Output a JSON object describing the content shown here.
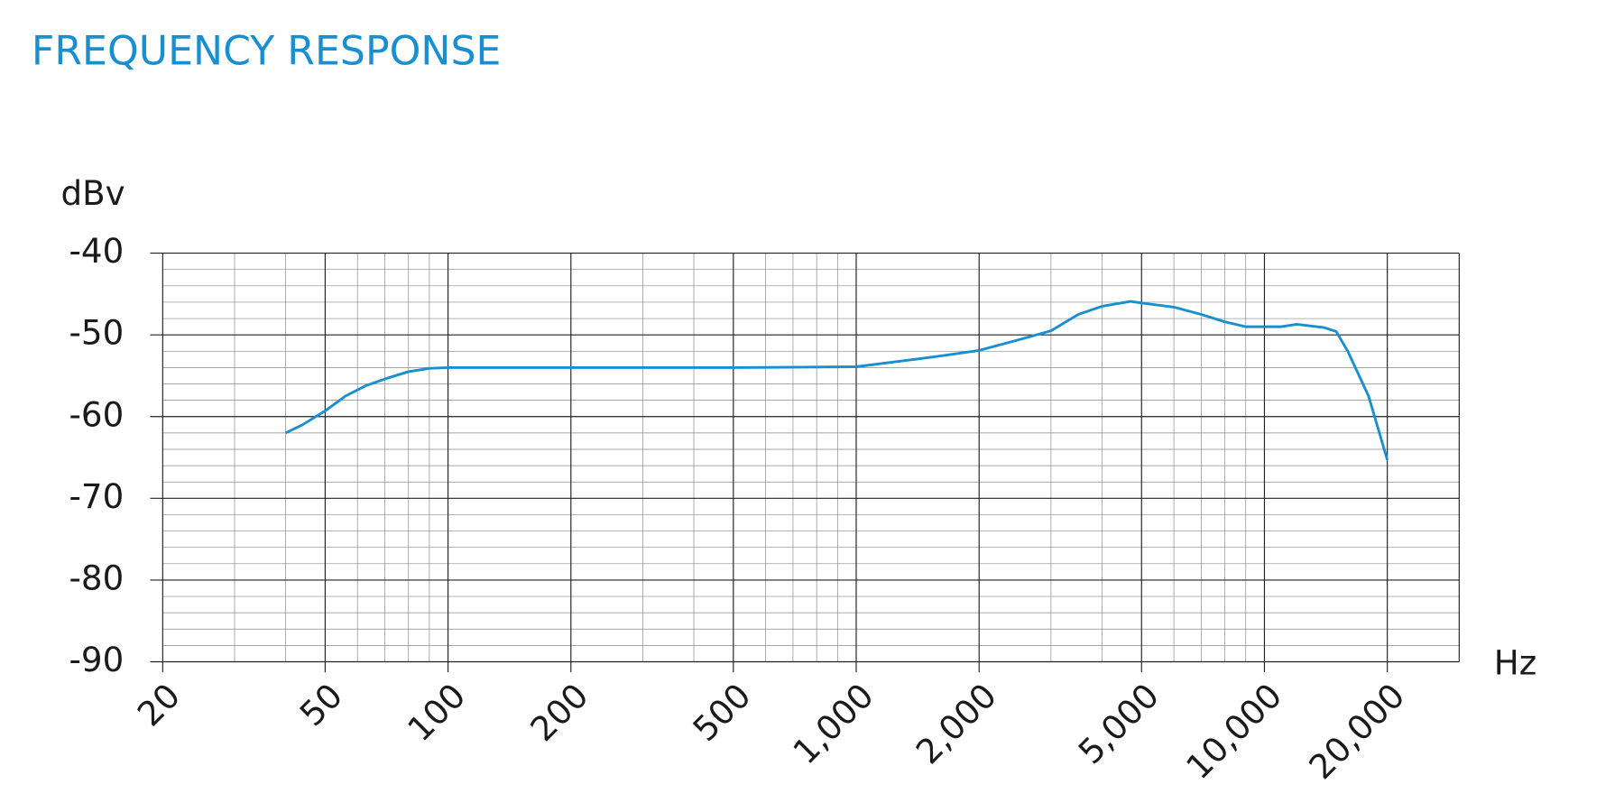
{
  "chart_data": {
    "type": "line",
    "title": "FREQUENCY RESPONSE",
    "y_label": "dBv",
    "x_label": "Hz",
    "x_scale": "log",
    "y_scale": "linear",
    "grid": true,
    "xlim": [
      20,
      30000
    ],
    "ylim": [
      -90,
      -40
    ],
    "xticks": [
      20,
      50,
      100,
      200,
      500,
      {
        "value": 1000,
        "label": "1,000"
      },
      {
        "value": 2000,
        "label": "2,000"
      },
      {
        "value": 5000,
        "label": "5,000"
      },
      {
        "value": 10000,
        "label": "10,000"
      },
      {
        "value": 20000,
        "label": "20,000"
      }
    ],
    "yticks": [
      -90,
      -80,
      -70,
      -60,
      -50,
      -40
    ],
    "minor_xticks": [
      30,
      40,
      60,
      70,
      80,
      90,
      300,
      400,
      600,
      700,
      800,
      900,
      3000,
      4000,
      6000,
      7000,
      8000,
      9000,
      30000
    ],
    "minor_yticks": [
      -88,
      -86,
      -84,
      -82,
      -78,
      -76,
      -74,
      -72,
      -68,
      -66,
      -64,
      -62,
      -58,
      -56,
      -54,
      -52,
      -48,
      -46,
      -44,
      -42
    ],
    "series": [
      {
        "color": "#1a8fd0",
        "x": [
          40,
          44,
          50,
          56,
          63,
          71,
          80,
          90,
          100,
          200,
          500,
          1000,
          1200,
          1600,
          2000,
          2500,
          3000,
          3500,
          4000,
          4700,
          5000,
          6000,
          7000,
          8000,
          9000,
          10000,
          11000,
          12000,
          14000,
          15000,
          16000,
          18000,
          20000
        ],
        "values": [
          -62,
          -61,
          -59.3,
          -57.5,
          -56.2,
          -55.3,
          -54.5,
          -54.1,
          -54,
          -54,
          -54,
          -53.9,
          -53.4,
          -52.6,
          -51.9,
          -50.6,
          -49.5,
          -47.5,
          -46.5,
          -45.9,
          -46.1,
          -46.6,
          -47.5,
          -48.4,
          -49,
          -49,
          -49,
          -48.7,
          -49.1,
          -49.6,
          -52,
          -57.5,
          -65.3
        ]
      }
    ]
  }
}
